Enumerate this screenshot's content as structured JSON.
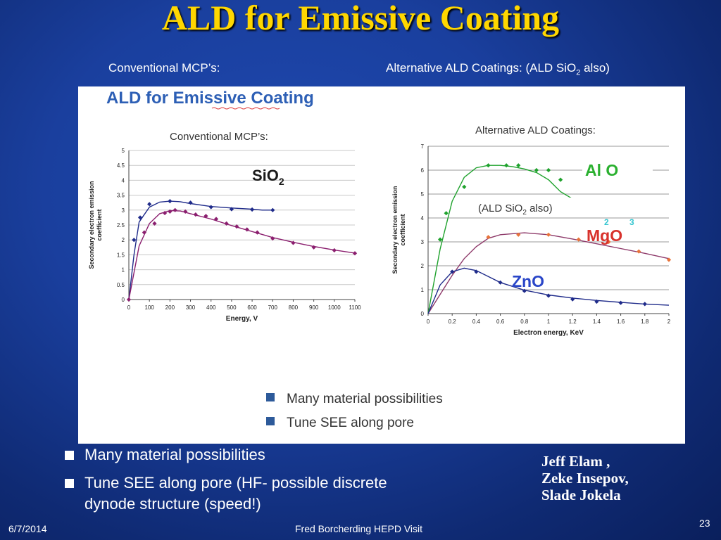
{
  "slide": {
    "title": "ALD for Emissive Coating",
    "subtitle_left": "Conventional MCP’s:",
    "subtitle_right_pre": "Alternative ALD Coatings:  (ALD SiO",
    "subtitle_right_sub": "2",
    "subtitle_right_post": " also)",
    "bullets": [
      "Many material possibilities",
      "Tune SEE along pore (HF- possible discrete dynode structure (speed!)"
    ],
    "authors": [
      "Jeff  Elam ,",
      "Zeke Insepov,",
      "Slade Jokela"
    ],
    "footer": {
      "date": "6/7/2014",
      "center": "Fred Borcherding HEPD Visit",
      "page": "23"
    }
  },
  "figure": {
    "title_pre": "ALD for ",
    "title_underlined": "Emissive",
    "title_post": " Coating",
    "left_caption": "Conventional MCP’s:",
    "right_caption": "Alternative ALD Coatings:",
    "sio2_pre": "SiO",
    "sio2_sub": "2",
    "alo": "Al O",
    "alo_sub1": "2",
    "alo_sub2": "3",
    "ald_note_pre": "(ALD SiO",
    "ald_note_sub": "2",
    "ald_note_post": " also)",
    "mgo": "MgO",
    "zno": "ZnO",
    "legend": [
      "Many material possibilities",
      "Tune SEE along pore"
    ]
  },
  "chart_data": [
    {
      "type": "line",
      "xlabel": "Energy, V",
      "ylabel": "Secondary electron emission coefficient",
      "xlim": [
        0,
        1100
      ],
      "ylim": [
        0,
        5
      ],
      "x_ticks": [
        0,
        100,
        200,
        300,
        400,
        500,
        600,
        700,
        800,
        900,
        1000,
        1100
      ],
      "y_ticks": [
        0,
        0.5,
        1,
        1.5,
        2,
        2.5,
        3,
        3.5,
        4,
        4.5,
        5
      ],
      "series": [
        {
          "points": [
            [
              0,
              0
            ],
            [
              25,
              1.5
            ],
            [
              50,
              2.6
            ],
            [
              100,
              3.1
            ],
            [
              150,
              3.27
            ],
            [
              200,
              3.3
            ],
            [
              250,
              3.28
            ],
            [
              300,
              3.22
            ],
            [
              400,
              3.12
            ],
            [
              500,
              3.07
            ],
            [
              600,
              3.03
            ],
            [
              650,
              3.0
            ],
            [
              700,
              3.0
            ]
          ],
          "markers": [
            [
              25,
              2.0
            ],
            [
              55,
              2.75
            ],
            [
              100,
              3.2
            ],
            [
              200,
              3.3
            ],
            [
              300,
              3.25
            ],
            [
              400,
              3.1
            ],
            [
              500,
              3.03
            ],
            [
              600,
              3.02
            ],
            [
              700,
              3.0
            ]
          ],
          "color": "#1f2b8a"
        },
        {
          "points": [
            [
              0,
              0
            ],
            [
              50,
              1.8
            ],
            [
              100,
              2.55
            ],
            [
              150,
              2.88
            ],
            [
              200,
              2.98
            ],
            [
              250,
              2.97
            ],
            [
              300,
              2.88
            ],
            [
              400,
              2.7
            ],
            [
              500,
              2.48
            ],
            [
              600,
              2.28
            ],
            [
              700,
              2.08
            ],
            [
              800,
              1.92
            ],
            [
              900,
              1.78
            ],
            [
              1000,
              1.66
            ],
            [
              1100,
              1.56
            ]
          ],
          "markers": [
            [
              0,
              0
            ],
            [
              75,
              2.25
            ],
            [
              125,
              2.55
            ],
            [
              175,
              2.9
            ],
            [
              200,
              2.95
            ],
            [
              225,
              3.0
            ],
            [
              275,
              2.95
            ],
            [
              325,
              2.85
            ],
            [
              375,
              2.8
            ],
            [
              425,
              2.7
            ],
            [
              475,
              2.55
            ],
            [
              525,
              2.45
            ],
            [
              575,
              2.35
            ],
            [
              625,
              2.25
            ],
            [
              700,
              2.05
            ],
            [
              800,
              1.9
            ],
            [
              900,
              1.75
            ],
            [
              1000,
              1.65
            ],
            [
              1100,
              1.55
            ]
          ],
          "color": "#8b1f6f"
        }
      ]
    },
    {
      "type": "line",
      "xlabel": "Electron energy, KeV",
      "ylabel": "Secondary electron emission coefficient",
      "xlim": [
        0,
        2
      ],
      "ylim": [
        0,
        7
      ],
      "x_ticks": [
        0,
        0.2,
        0.4,
        0.6,
        0.8,
        1,
        1.2,
        1.4,
        1.6,
        1.8,
        2
      ],
      "y_ticks": [
        0,
        1,
        2,
        3,
        4,
        5,
        6,
        7
      ],
      "series": [
        {
          "name": "Al O",
          "color": "#1fa22d",
          "points": [
            [
              0,
              0
            ],
            [
              0.1,
              2.7
            ],
            [
              0.2,
              4.7
            ],
            [
              0.3,
              5.7
            ],
            [
              0.4,
              6.1
            ],
            [
              0.5,
              6.2
            ],
            [
              0.6,
              6.2
            ],
            [
              0.7,
              6.15
            ],
            [
              0.8,
              6.05
            ],
            [
              0.9,
              5.9
            ],
            [
              1.0,
              5.6
            ],
            [
              1.1,
              5.1
            ],
            [
              1.2,
              4.8
            ]
          ],
          "markers": [
            [
              0.1,
              3.1
            ],
            [
              0.15,
              4.2
            ],
            [
              0.3,
              5.3
            ],
            [
              0.5,
              6.2
            ],
            [
              0.65,
              6.2
            ],
            [
              0.75,
              6.2
            ],
            [
              0.9,
              6.0
            ],
            [
              1.0,
              6.0
            ],
            [
              1.1,
              5.6
            ]
          ]
        },
        {
          "name": "MgO",
          "color": "#8e3a6a",
          "points": [
            [
              0,
              0
            ],
            [
              0.1,
              0.8
            ],
            [
              0.2,
              1.6
            ],
            [
              0.3,
              2.3
            ],
            [
              0.4,
              2.8
            ],
            [
              0.5,
              3.15
            ],
            [
              0.6,
              3.3
            ],
            [
              0.8,
              3.38
            ],
            [
              1.0,
              3.3
            ],
            [
              1.2,
              3.12
            ],
            [
              1.4,
              2.92
            ],
            [
              1.6,
              2.72
            ],
            [
              1.8,
              2.52
            ],
            [
              2.0,
              2.3
            ]
          ],
          "markers": [
            [
              0.5,
              3.2
            ],
            [
              0.75,
              3.3
            ],
            [
              1.0,
              3.3
            ],
            [
              1.25,
              3.1
            ],
            [
              1.5,
              3.0
            ],
            [
              1.75,
              2.6
            ],
            [
              2.0,
              2.25
            ]
          ],
          "marker_color": "#e8743b"
        },
        {
          "name": "ZnO",
          "color": "#1f2b8a",
          "points": [
            [
              0,
              0
            ],
            [
              0.05,
              0.6
            ],
            [
              0.1,
              1.2
            ],
            [
              0.2,
              1.75
            ],
            [
              0.3,
              1.9
            ],
            [
              0.4,
              1.8
            ],
            [
              0.5,
              1.55
            ],
            [
              0.6,
              1.3
            ],
            [
              0.8,
              0.98
            ],
            [
              1.0,
              0.78
            ],
            [
              1.2,
              0.65
            ],
            [
              1.4,
              0.55
            ],
            [
              1.6,
              0.47
            ],
            [
              1.8,
              0.4
            ],
            [
              2.0,
              0.35
            ]
          ],
          "markers": [
            [
              0.2,
              1.75
            ],
            [
              0.4,
              1.75
            ],
            [
              0.6,
              1.3
            ],
            [
              0.8,
              0.95
            ],
            [
              1.0,
              0.75
            ],
            [
              1.2,
              0.6
            ],
            [
              1.4,
              0.5
            ],
            [
              1.6,
              0.45
            ],
            [
              1.8,
              0.4
            ]
          ]
        }
      ]
    }
  ]
}
